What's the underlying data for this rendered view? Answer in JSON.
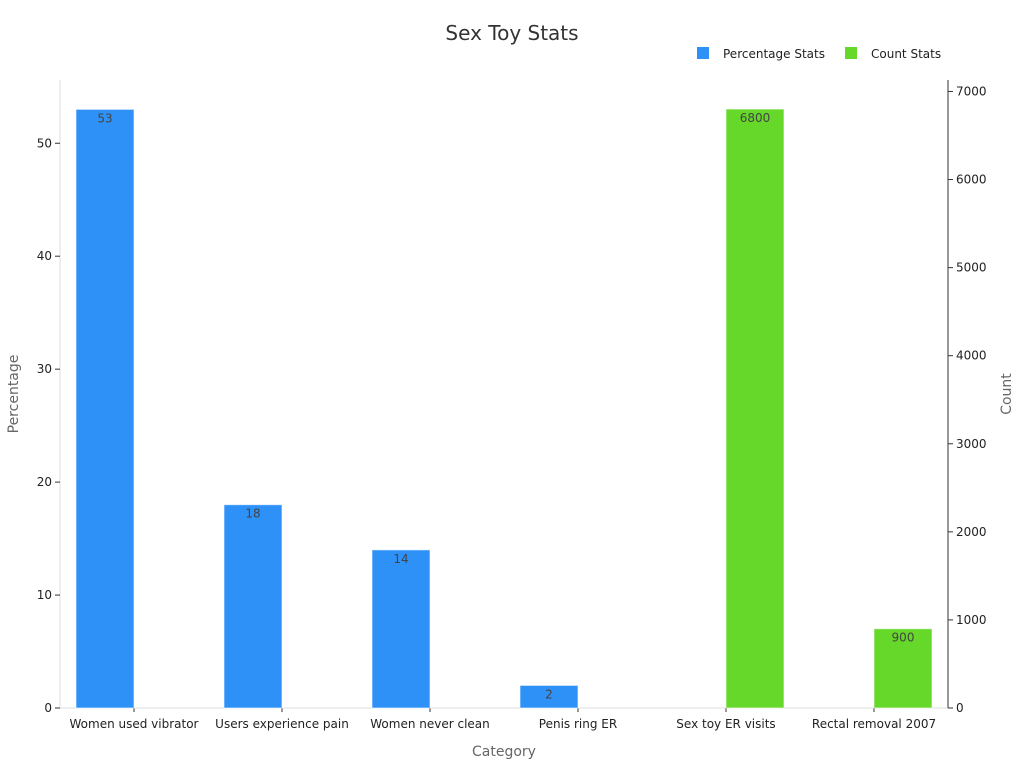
{
  "chart_data": {
    "type": "bar",
    "title": "Sex Toy Stats",
    "xlabel": "Category",
    "categories": [
      "Women used vibrator",
      "Users experience pain",
      "Women never clean",
      "Penis ring ER",
      "Sex toy ER visits",
      "Rectal removal 2007"
    ],
    "y_left": {
      "label": "Percentage",
      "ylim": [
        0,
        55.6
      ],
      "ticks": [
        0,
        10,
        20,
        30,
        40,
        50
      ]
    },
    "y_right": {
      "label": "Count",
      "ylim": [
        0,
        7130
      ],
      "ticks": [
        0,
        1000,
        2000,
        3000,
        4000,
        5000,
        6000,
        7000
      ]
    },
    "series": [
      {
        "name": "Percentage Stats",
        "axis": "left",
        "color": "#2e91f7",
        "values": [
          53,
          18,
          14,
          2,
          null,
          null
        ],
        "labels": [
          "53",
          "18",
          "14",
          "2",
          "",
          ""
        ]
      },
      {
        "name": "Count Stats",
        "axis": "right",
        "color": "#66d829",
        "values": [
          null,
          null,
          null,
          null,
          6800,
          900
        ],
        "labels": [
          "",
          "",
          "",
          "",
          "6800",
          "900"
        ]
      }
    ],
    "legend": "top-right",
    "grid": false
  }
}
